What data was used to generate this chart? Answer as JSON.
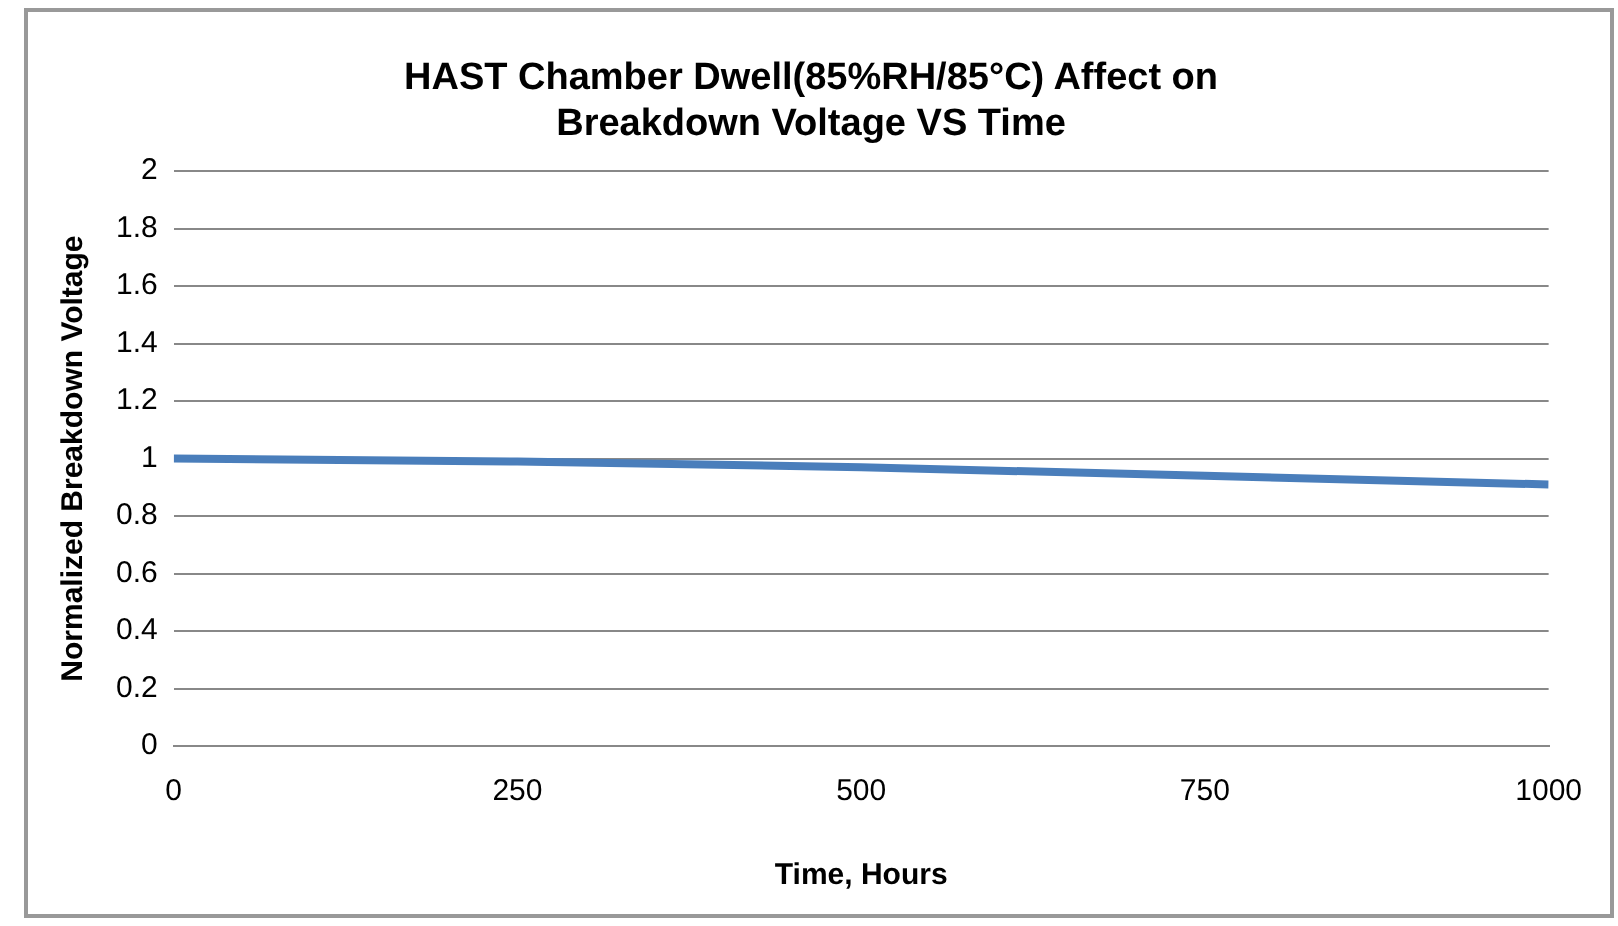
{
  "chart_data": {
    "type": "line",
    "title": "HAST Chamber Dwell(85%RH/85°C) Affect on Breakdown Voltage VS Time",
    "xlabel": "Time, Hours",
    "ylabel": "Normalized Breakdown Voltage",
    "x": [
      0,
      250,
      500,
      750,
      1000
    ],
    "series": [
      {
        "color": "#4a7ebb",
        "values": [
          1.0,
          0.99,
          0.97,
          0.94,
          0.91
        ]
      }
    ],
    "xlim": [
      0,
      1000
    ],
    "xticks": [
      0,
      250,
      500,
      750,
      1000
    ],
    "ylim": [
      0,
      2
    ],
    "yticks": [
      0,
      0.2,
      0.4,
      0.6,
      0.8,
      1,
      1.2,
      1.4,
      1.6,
      1.8,
      2
    ],
    "grid": "y",
    "legend": false,
    "marker": "none",
    "line_style": "solid"
  }
}
